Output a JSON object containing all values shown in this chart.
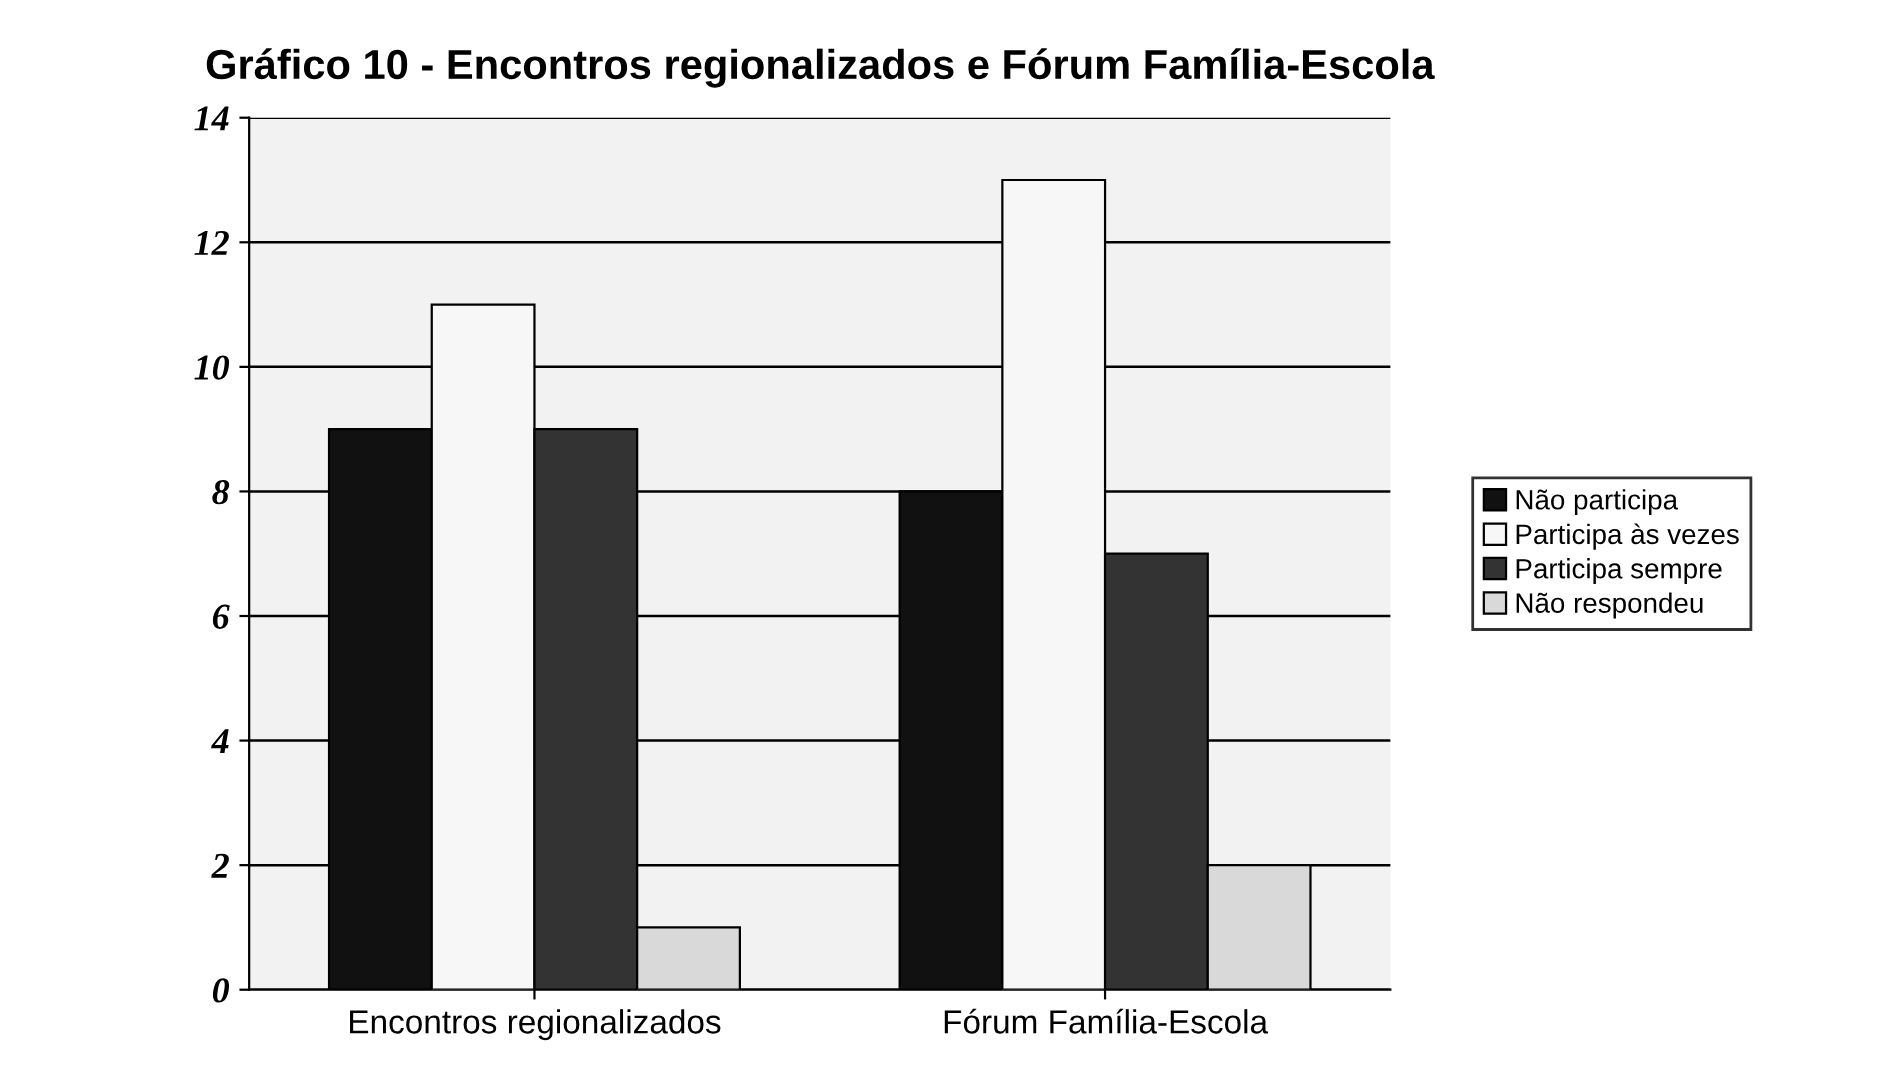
{
  "chart_data": {
    "type": "bar",
    "title": "Gráfico 10 - Encontros regionalizados e Fórum Família-Escola",
    "categories": [
      "Encontros regionalizados",
      "Fórum Família-Escola"
    ],
    "series": [
      {
        "name": "Não participa",
        "color": "#111111",
        "values": [
          9,
          8
        ]
      },
      {
        "name": "Participa às vezes",
        "color": "#f7f7f7",
        "values": [
          11,
          13
        ]
      },
      {
        "name": "Participa sempre",
        "color": "#333333",
        "values": [
          9,
          7
        ]
      },
      {
        "name": "Não respondeu",
        "color": "#d9d9d9",
        "values": [
          1,
          2
        ]
      }
    ],
    "ylim": [
      0,
      14
    ],
    "yticks": [
      0,
      2,
      4,
      6,
      8,
      10,
      12,
      14
    ],
    "grid": "y",
    "legend": "right"
  }
}
